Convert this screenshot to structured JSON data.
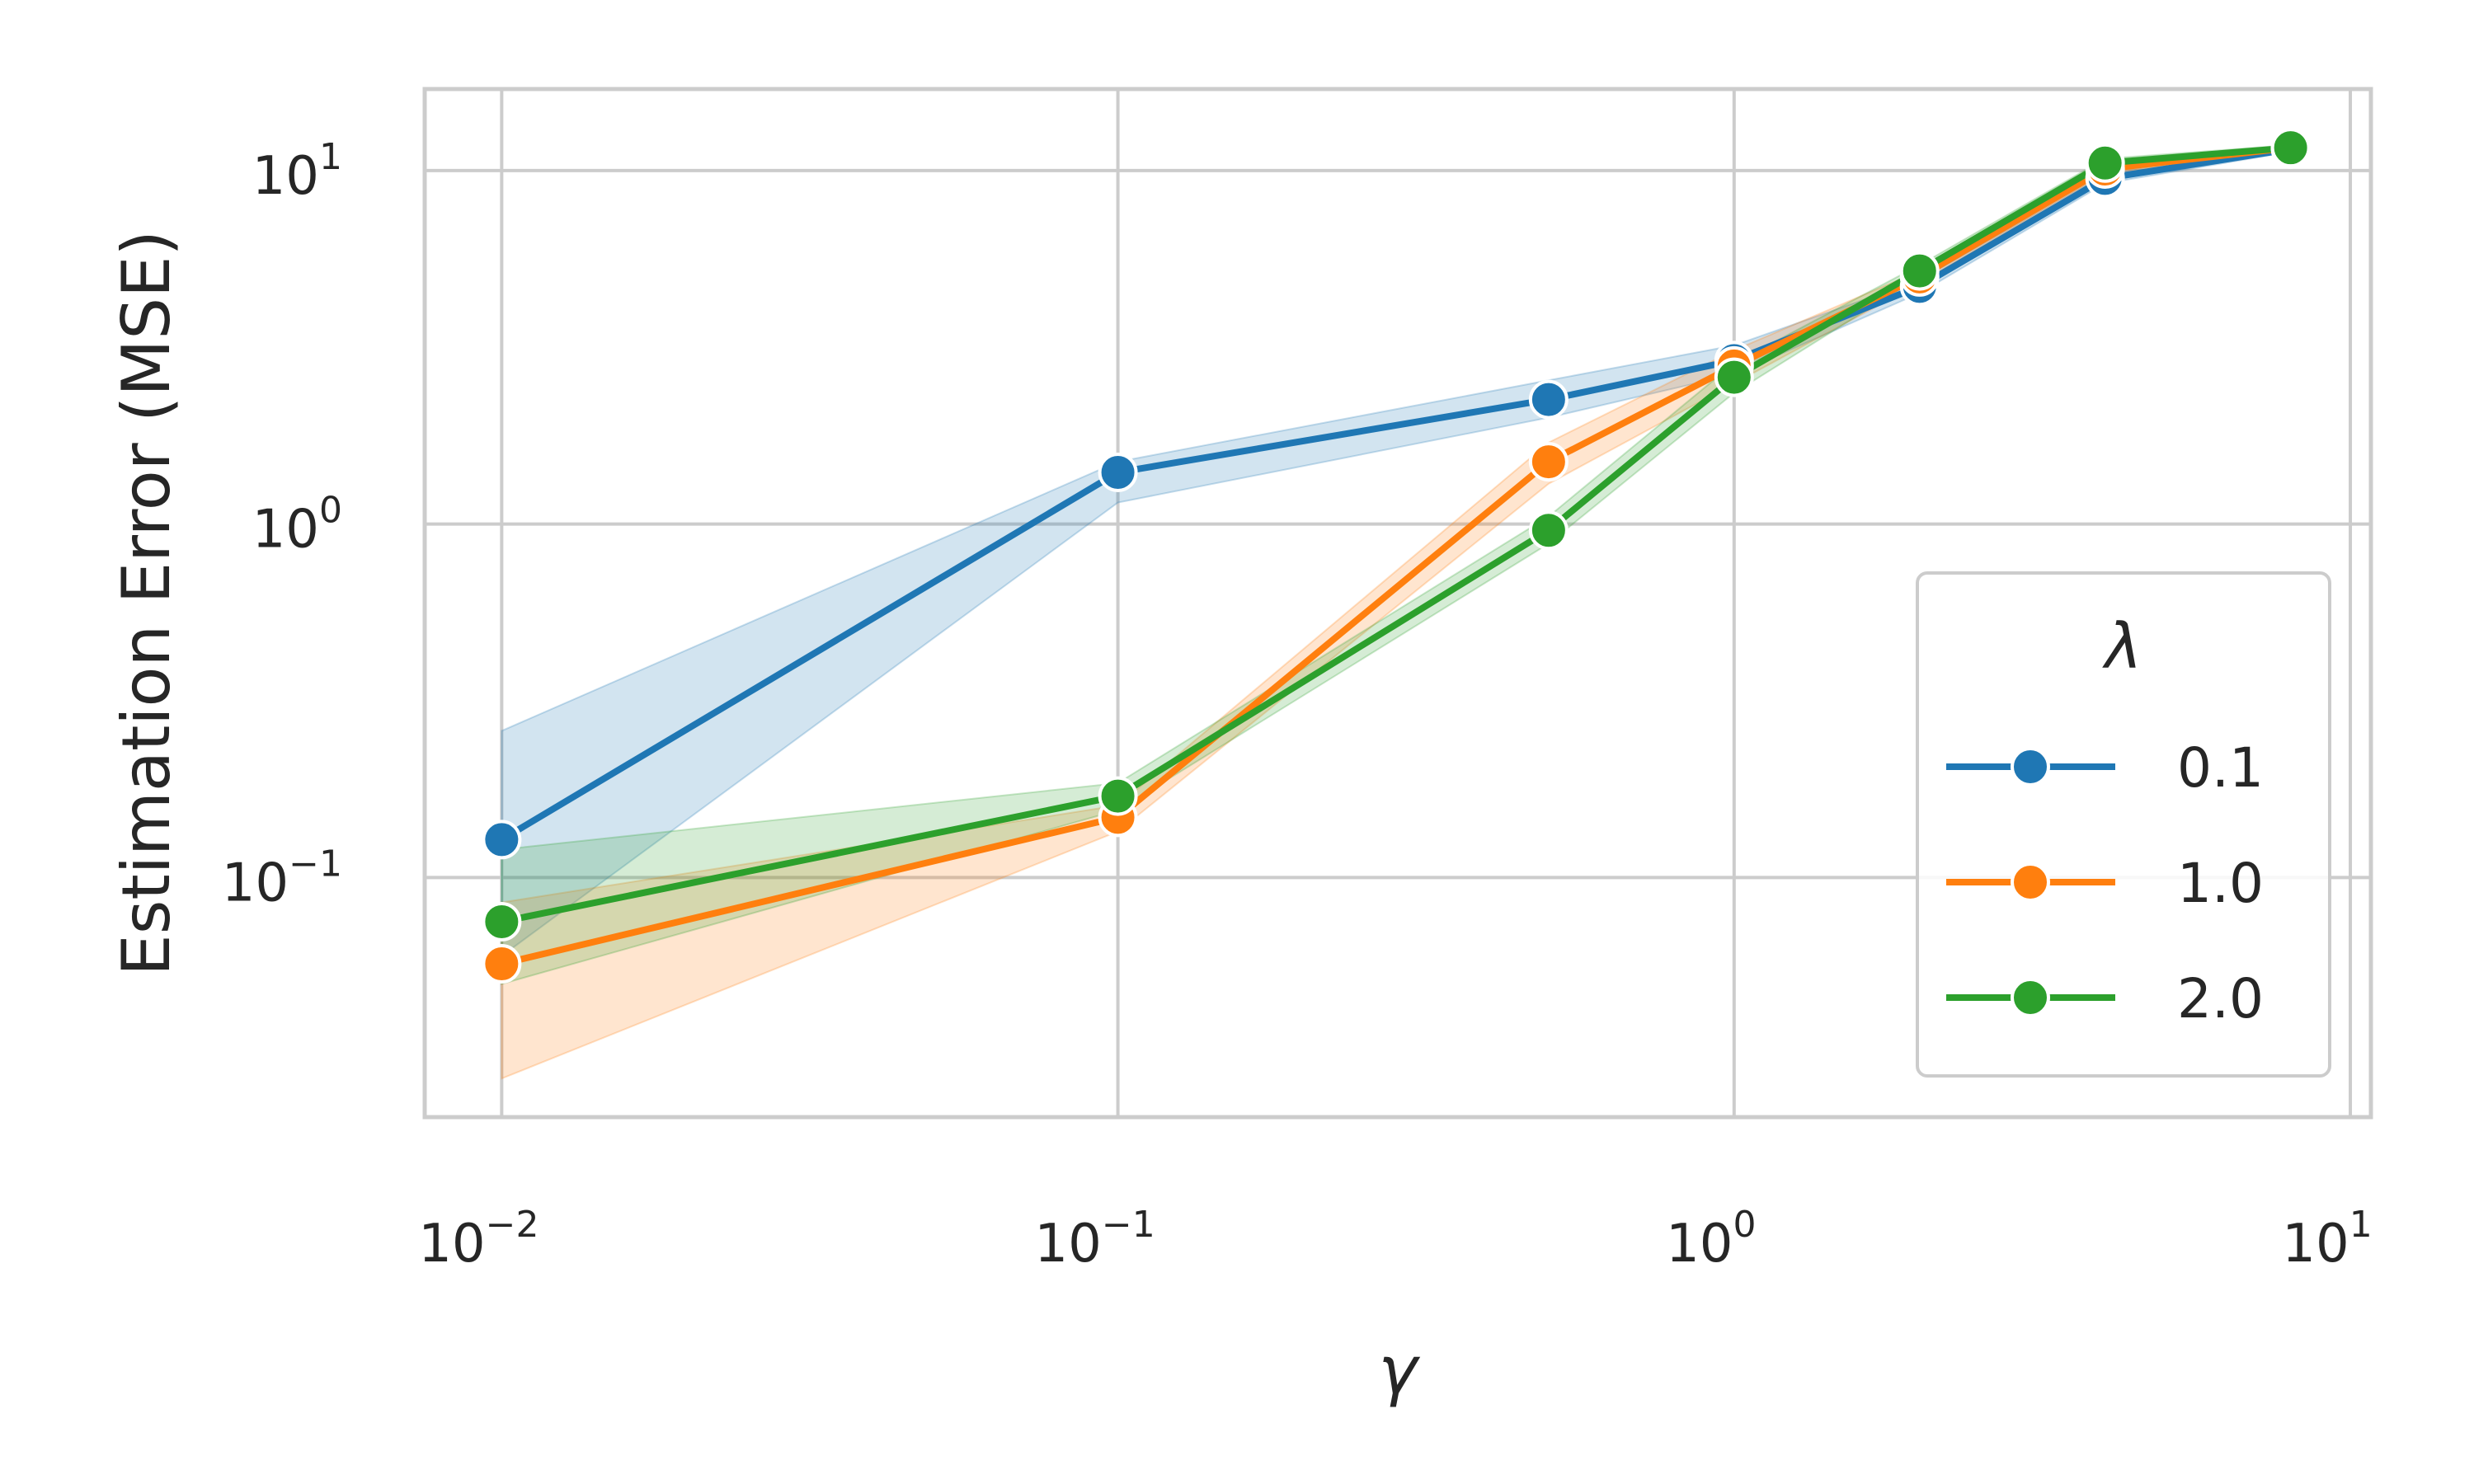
{
  "chart_data": {
    "type": "line",
    "title": "",
    "xlabel": "γ",
    "ylabel": "Estimation Error (MSE)",
    "xscale": "log",
    "yscale": "log",
    "xlim": [
      0.0075,
      10.8
    ],
    "ylim": [
      0.021,
      17
    ],
    "grid": true,
    "x_ticks": [
      {
        "value": 0.01,
        "base": "10",
        "exp": "−2"
      },
      {
        "value": 0.1,
        "base": "10",
        "exp": "−1"
      },
      {
        "value": 1,
        "base": "10",
        "exp": "0"
      },
      {
        "value": 10,
        "base": "10",
        "exp": "1"
      }
    ],
    "y_ticks": [
      {
        "value": 0.1,
        "base": "10",
        "exp": "−1"
      },
      {
        "value": 1,
        "base": "10",
        "exp": "0"
      },
      {
        "value": 10,
        "base": "10",
        "exp": "1"
      }
    ],
    "legend": {
      "title": "λ",
      "position": "lower-right"
    },
    "series": [
      {
        "name": "0.1",
        "color": "#1f77b4",
        "x": [
          0.01,
          0.1,
          0.5,
          1,
          2,
          4,
          8
        ],
        "y": [
          0.128,
          1.4,
          2.25,
          2.9,
          4.7,
          9.5,
          11.5
        ],
        "lower": [
          0.06,
          1.15,
          2.0,
          2.65,
          4.5,
          9.2,
          11.3
        ],
        "upper": [
          0.26,
          1.5,
          2.55,
          3.2,
          4.9,
          9.8,
          11.8
        ]
      },
      {
        "name": "1.0",
        "color": "#ff7f0e",
        "x": [
          0.01,
          0.1,
          0.5,
          1,
          2,
          4,
          8
        ],
        "y": [
          0.057,
          0.148,
          1.5,
          2.8,
          5.0,
          10.1,
          11.6
        ],
        "lower": [
          0.027,
          0.135,
          1.3,
          2.5,
          4.8,
          9.8,
          11.4
        ],
        "upper": [
          0.085,
          0.16,
          1.7,
          3.1,
          5.2,
          10.4,
          11.8
        ]
      },
      {
        "name": "2.0",
        "color": "#2ca02c",
        "x": [
          0.01,
          0.1,
          0.5,
          1,
          2,
          4,
          8
        ],
        "y": [
          0.075,
          0.17,
          0.96,
          2.6,
          5.2,
          10.5,
          11.6
        ],
        "lower": [
          0.05,
          0.155,
          0.88,
          2.35,
          5.0,
          10.2,
          11.4
        ],
        "upper": [
          0.12,
          0.185,
          1.05,
          2.85,
          5.4,
          10.8,
          11.8
        ]
      }
    ]
  }
}
